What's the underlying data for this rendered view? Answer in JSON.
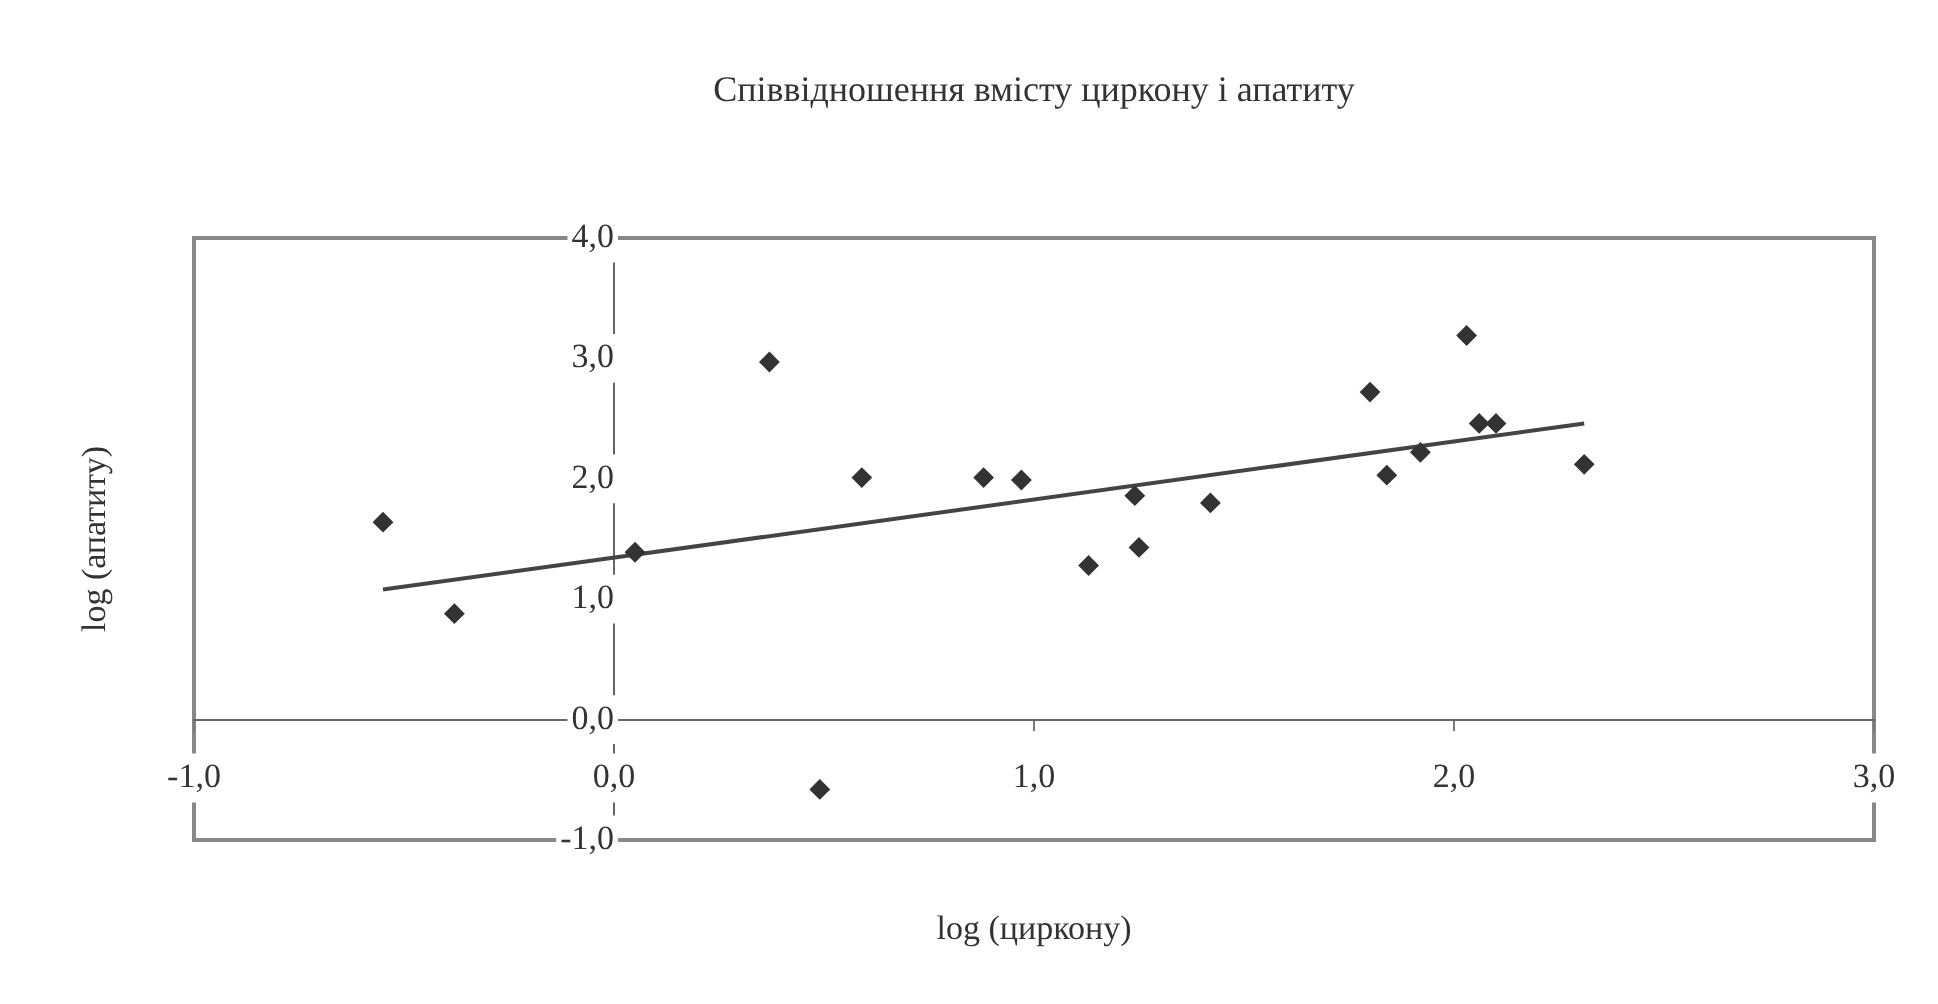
{
  "chart_data": {
    "type": "scatter",
    "title": "Співвідношення вмісту циркону і апатиту",
    "xlabel": "log (циркону)",
    "ylabel": "log (апатиту)",
    "xlim": [
      -1,
      3
    ],
    "xticks": [
      {
        "value": -1,
        "label": "-1,0"
      },
      {
        "value": 0,
        "label": "0,0"
      },
      {
        "value": 1,
        "label": "1,0"
      },
      {
        "value": 2,
        "label": "2,0"
      },
      {
        "value": 3,
        "label": "3,0"
      }
    ],
    "ylim": [
      -1,
      4
    ],
    "yticks": [
      {
        "value": -1,
        "label": "-1,0"
      },
      {
        "value": 0,
        "label": "0,0"
      },
      {
        "value": 1,
        "label": "1,0"
      },
      {
        "value": 2,
        "label": "2,0"
      },
      {
        "value": 3,
        "label": "3,0"
      },
      {
        "value": 4,
        "label": "4,0"
      }
    ],
    "grid": false,
    "legend": false,
    "marker": "diamond",
    "series": [
      {
        "color": "#333333",
        "x": [
          -0.55,
          -0.38,
          0.05,
          0.37,
          0.49,
          0.59,
          0.88,
          0.97,
          1.13,
          1.24,
          1.25,
          1.42,
          1.8,
          1.84,
          1.92,
          2.03,
          2.06,
          2.1,
          2.31
        ],
        "values": [
          1.64,
          0.88,
          1.39,
          2.97,
          -0.58,
          2.01,
          2.01,
          1.99,
          1.28,
          1.86,
          1.43,
          1.8,
          2.72,
          2.03,
          2.22,
          3.19,
          2.46,
          2.46,
          2.12
        ]
      },
      {
        "type": "line",
        "color": "#444444",
        "marker": "none",
        "line_style": "solid",
        "x": [
          -0.55,
          2.31
        ],
        "values": [
          1.08,
          2.46
        ]
      }
    ]
  }
}
